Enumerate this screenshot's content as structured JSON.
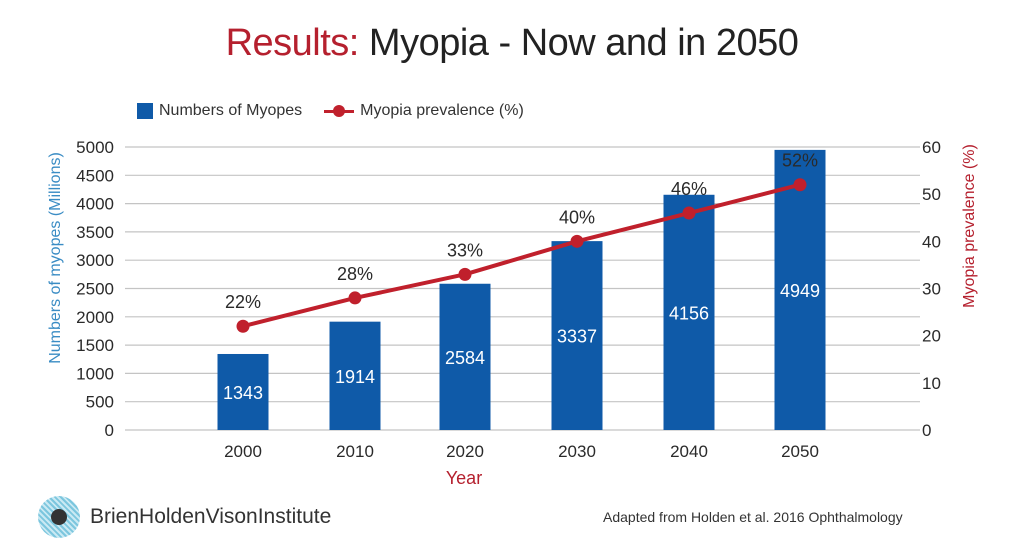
{
  "title": {
    "accent": "Results:",
    "rest": " Myopia - Now and in 2050"
  },
  "colors": {
    "bar": "#0f5aa8",
    "line": "#c0202c",
    "left_axis_title": "#3a8cc4",
    "right_axis_title": "#b5202e",
    "xlabel": "#b5202e",
    "grid": "#c4c4c4"
  },
  "legend": {
    "items": [
      {
        "label": "Numbers of Myopes",
        "icon": "blue-square-icon"
      },
      {
        "label": "Myopia prevalence (%)",
        "icon": "red-line-marker-icon"
      }
    ]
  },
  "chart_data": {
    "type": "bar+line",
    "title": "Results: Myopia - Now and in 2050",
    "categories": [
      "2000",
      "2010",
      "2020",
      "2030",
      "2040",
      "2050"
    ],
    "series": [
      {
        "name": "Numbers of Myopes",
        "type": "bar",
        "axis": "left",
        "values": [
          1343,
          1914,
          2584,
          3337,
          4156,
          4949
        ],
        "labels": [
          "1343",
          "1914",
          "2584",
          "3337",
          "4156",
          "4949"
        ]
      },
      {
        "name": "Myopia prevalence (%)",
        "type": "line",
        "axis": "right",
        "values": [
          22,
          28,
          33,
          40,
          46,
          52
        ],
        "labels": [
          "22%",
          "28%",
          "33%",
          "40%",
          "46%",
          "52%"
        ]
      }
    ],
    "xlabel": "Year",
    "ylabel": "Numbers of  myopes (Millions)",
    "y2label": "Myopia prevalence (%)",
    "ylim": [
      0,
      5000
    ],
    "yticks": [
      0,
      500,
      1000,
      1500,
      2000,
      2500,
      3000,
      3500,
      4000,
      4500,
      5000
    ],
    "y2lim": [
      0,
      60
    ],
    "y2ticks": [
      0,
      10,
      20,
      30,
      40,
      50,
      60
    ],
    "grid": true,
    "legend_position": "top-left"
  },
  "footer": {
    "logo_text": "BrienHoldenVisonInstitute",
    "logo_icon": "eye-logo-icon",
    "source": "Adapted from Holden et al. 2016 Ophthalmology"
  }
}
